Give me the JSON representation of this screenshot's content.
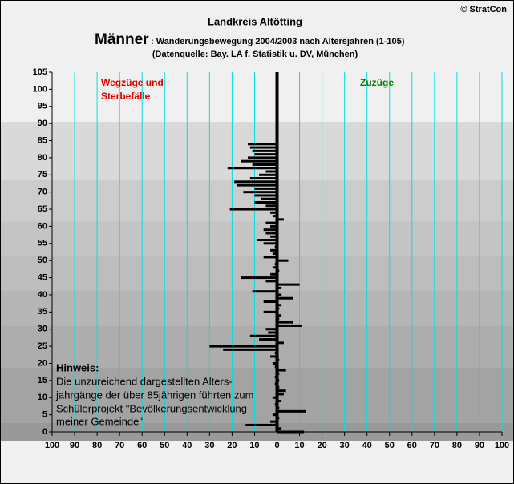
{
  "chart_data": {
    "type": "hbar",
    "title": "Landkreis Altötting",
    "subtitle_bold": "Männer",
    "subtitle": ": Wanderungsbewegung 2004/2003 nach Altersjahren (1-105)",
    "source": "(Datenquelle: Bay. LA f. Statistik u. DV, München)",
    "copyright": "© StratCon",
    "left_label": [
      "Wegzüge und",
      "Sterbefälle"
    ],
    "right_label": "Zuzüge",
    "note_title": "Hinweis:",
    "note_lines": [
      "Die unzureichend dargestellten Alters-",
      "jahrgänge der über 85jährigen führten zum",
      "Schülerprojekt \"Bevölkerungsentwicklung",
      "meiner Gemeinde\""
    ],
    "color": "#000000",
    "y": [
      0,
      1,
      2,
      3,
      4,
      5,
      6,
      7,
      8,
      9,
      10,
      11,
      12,
      13,
      14,
      15,
      16,
      17,
      18,
      19,
      20,
      21,
      22,
      23,
      24,
      25,
      26,
      27,
      28,
      29,
      30,
      31,
      32,
      33,
      34,
      35,
      36,
      37,
      38,
      39,
      40,
      41,
      42,
      43,
      44,
      45,
      46,
      47,
      48,
      49,
      50,
      51,
      52,
      53,
      54,
      55,
      56,
      57,
      58,
      59,
      60,
      61,
      62,
      63,
      64,
      65,
      66,
      67,
      68,
      69,
      70,
      71,
      72,
      73,
      74,
      75,
      76,
      77,
      78,
      79,
      80,
      81,
      82,
      83,
      84
    ],
    "values": [
      12,
      2,
      -14,
      -3,
      1,
      -2,
      13,
      1,
      -1,
      2,
      -2,
      3,
      4,
      1,
      -1,
      1,
      -1,
      1,
      4,
      -1,
      -2,
      1,
      -3,
      -1,
      -24,
      -30,
      3,
      -8,
      -12,
      -4,
      -5,
      11,
      7,
      1,
      2,
      -6,
      1,
      2,
      -6,
      7,
      2,
      -11,
      2,
      10,
      -5,
      -16,
      -3,
      1,
      -2,
      -1,
      5,
      -6,
      -2,
      -3,
      -1,
      -6,
      -9,
      -3,
      -5,
      -6,
      -3,
      -5,
      3,
      -2,
      -3,
      -21,
      -5,
      -10,
      -7,
      -10,
      -15,
      -10,
      -18,
      -19,
      -12,
      -8,
      -5,
      -22,
      -11,
      -16,
      -13,
      -10,
      -11,
      -12,
      -13
    ],
    "xlim": [
      -100,
      100
    ],
    "xticks": [
      {
        "value": -100,
        "label": "100"
      },
      {
        "value": -90,
        "label": "90"
      },
      {
        "value": -80,
        "label": "80"
      },
      {
        "value": -70,
        "label": "70"
      },
      {
        "value": -60,
        "label": "60"
      },
      {
        "value": -50,
        "label": "50"
      },
      {
        "value": -40,
        "label": "40"
      },
      {
        "value": -30,
        "label": "30"
      },
      {
        "value": -20,
        "label": "20"
      },
      {
        "value": -10,
        "label": "10"
      },
      0,
      10,
      20,
      30,
      40,
      50,
      60,
      70,
      80,
      90,
      100
    ],
    "ylim": [
      0,
      105
    ],
    "yticks": [
      0,
      5,
      10,
      15,
      20,
      25,
      30,
      35,
      40,
      45,
      50,
      55,
      60,
      65,
      70,
      75,
      80,
      85,
      90,
      95,
      100,
      105
    ],
    "grid": true
  }
}
